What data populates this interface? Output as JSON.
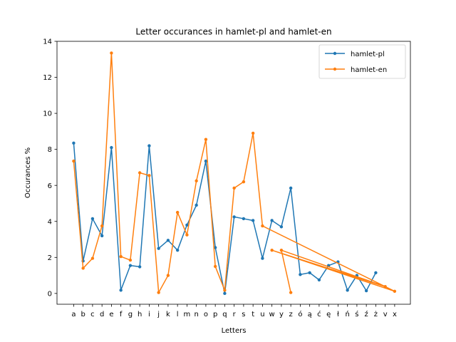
{
  "chart_data": {
    "type": "line",
    "title": "Letter occurances in hamlet-pl and hamlet-en",
    "xlabel": "Letters",
    "ylabel": "Occurances %",
    "ylim": [
      -0.6,
      14
    ],
    "yticks": [
      0,
      2,
      4,
      6,
      8,
      10,
      12,
      14
    ],
    "grid": false,
    "legend_position": "top-right",
    "categories": [
      "a",
      "b",
      "c",
      "d",
      "e",
      "f",
      "g",
      "h",
      "i",
      "j",
      "k",
      "l",
      "m",
      "n",
      "o",
      "p",
      "q",
      "r",
      "s",
      "t",
      "u",
      "w",
      "y",
      "z",
      "ó",
      "ą",
      "ć",
      "ę",
      "ł",
      "ń",
      "ś",
      "ź",
      "ż",
      "v",
      "x"
    ],
    "series": [
      {
        "name": "hamlet-pl",
        "color": "#1f77b4",
        "points": [
          [
            "a",
            8.35
          ],
          [
            "b",
            1.8
          ],
          [
            "c",
            4.15
          ],
          [
            "d",
            3.2
          ],
          [
            "e",
            8.1
          ],
          [
            "f",
            0.18
          ],
          [
            "g",
            1.55
          ],
          [
            "h",
            1.48
          ],
          [
            "i",
            8.2
          ],
          [
            "j",
            2.5
          ],
          [
            "k",
            2.95
          ],
          [
            "l",
            2.4
          ],
          [
            "m",
            3.8
          ],
          [
            "n",
            4.9
          ],
          [
            "o",
            7.35
          ],
          [
            "p",
            2.55
          ],
          [
            "q",
            0.0
          ],
          [
            "r",
            4.25
          ],
          [
            "s",
            4.15
          ],
          [
            "t",
            4.05
          ],
          [
            "u",
            1.95
          ],
          [
            "w",
            4.05
          ],
          [
            "y",
            3.7
          ],
          [
            "z",
            5.85
          ],
          [
            "ó",
            1.05
          ],
          [
            "ą",
            1.15
          ],
          [
            "ć",
            0.75
          ],
          [
            "ę",
            1.55
          ],
          [
            "ł",
            1.75
          ],
          [
            "ń",
            0.18
          ],
          [
            "ś",
            1.0
          ],
          [
            "ź",
            0.15
          ],
          [
            "ż",
            1.15
          ]
        ]
      },
      {
        "name": "hamlet-en",
        "color": "#ff7f0e",
        "points": [
          [
            "a",
            7.35
          ],
          [
            "b",
            1.4
          ],
          [
            "c",
            1.95
          ],
          [
            "d",
            3.75
          ],
          [
            "e",
            13.35
          ],
          [
            "f",
            2.05
          ],
          [
            "g",
            1.85
          ],
          [
            "h",
            6.7
          ],
          [
            "i",
            6.55
          ],
          [
            "j",
            0.05
          ],
          [
            "k",
            1.0
          ],
          [
            "l",
            4.5
          ],
          [
            "m",
            3.25
          ],
          [
            "n",
            6.25
          ],
          [
            "o",
            8.55
          ],
          [
            "p",
            1.5
          ],
          [
            "q",
            0.18
          ],
          [
            "r",
            5.85
          ],
          [
            "s",
            6.2
          ],
          [
            "t",
            8.9
          ],
          [
            "u",
            3.75
          ],
          [
            "x",
            0.12
          ],
          [
            "w",
            2.4
          ],
          [
            "v",
            0.38
          ],
          [
            "y",
            2.4
          ],
          [
            "z",
            0.05
          ]
        ]
      }
    ]
  }
}
